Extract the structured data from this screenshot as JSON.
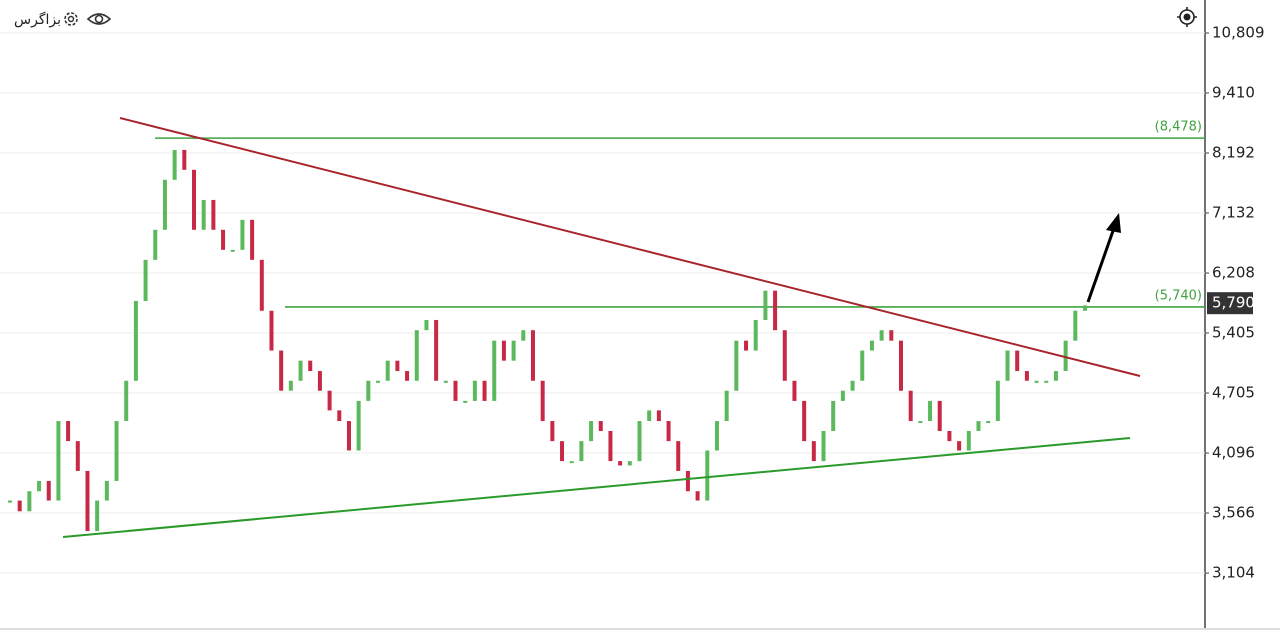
{
  "chart_data": {
    "type": "price",
    "symbol": "بزاگرس",
    "log_scale": true,
    "grid": true,
    "up_color": "#5cb85c",
    "down_color": "#c62845",
    "level_color": "#3fa33f",
    "ylim": [
      2734,
      11665
    ],
    "yticks": [
      {
        "value": 10809,
        "label": "10,809"
      },
      {
        "value": 9410,
        "label": "9,410"
      },
      {
        "value": 8192,
        "label": "8,192"
      },
      {
        "value": 7132,
        "label": "7,132"
      },
      {
        "value": 6208,
        "label": "6,208"
      },
      {
        "value": 5405,
        "label": "5,405"
      },
      {
        "value": 4705,
        "label": "4,705"
      },
      {
        "value": 4096,
        "label": "4,096"
      },
      {
        "value": 3566,
        "label": "3,566"
      },
      {
        "value": 3104,
        "label": "3,104"
      }
    ],
    "levels": [
      {
        "value": 8478,
        "label": "(8,478)"
      },
      {
        "value": 5740,
        "label": "(5,740)"
      }
    ],
    "last_price": {
      "value": 5790,
      "label": "5,790"
    },
    "values": [
      3670,
      3580,
      3750,
      3840,
      3670,
      4410,
      4210,
      3930,
      3420,
      3670,
      3840,
      4410,
      4840,
      5820,
      6400,
      6860,
      7700,
      8250,
      7880,
      6860,
      7350,
      6860,
      6550,
      6550,
      7020,
      6400,
      5690,
      5190,
      4730,
      4840,
      5070,
      4950,
      4730,
      4520,
      4410,
      4120,
      4620,
      4840,
      4840,
      5070,
      4950,
      4840,
      5440,
      5570,
      4840,
      4840,
      4620,
      4620,
      4840,
      4620,
      5310,
      5070,
      5310,
      5440,
      4840,
      4410,
      4210,
      4020,
      4020,
      4210,
      4410,
      4310,
      4020,
      3980,
      4020,
      4410,
      4520,
      4410,
      4210,
      3930,
      3750,
      3670,
      4120,
      4410,
      4730,
      5310,
      5190,
      5570,
      5960,
      5440,
      4840,
      4620,
      4210,
      4020,
      4310,
      4620,
      4730,
      4840,
      5190,
      5310,
      5440,
      5310,
      4730,
      4410,
      4410,
      4620,
      4310,
      4210,
      4120,
      4310,
      4410,
      4410,
      4840,
      5190,
      4950,
      4840,
      4840,
      4840,
      4950,
      5310,
      5690,
      5760
    ]
  }
}
